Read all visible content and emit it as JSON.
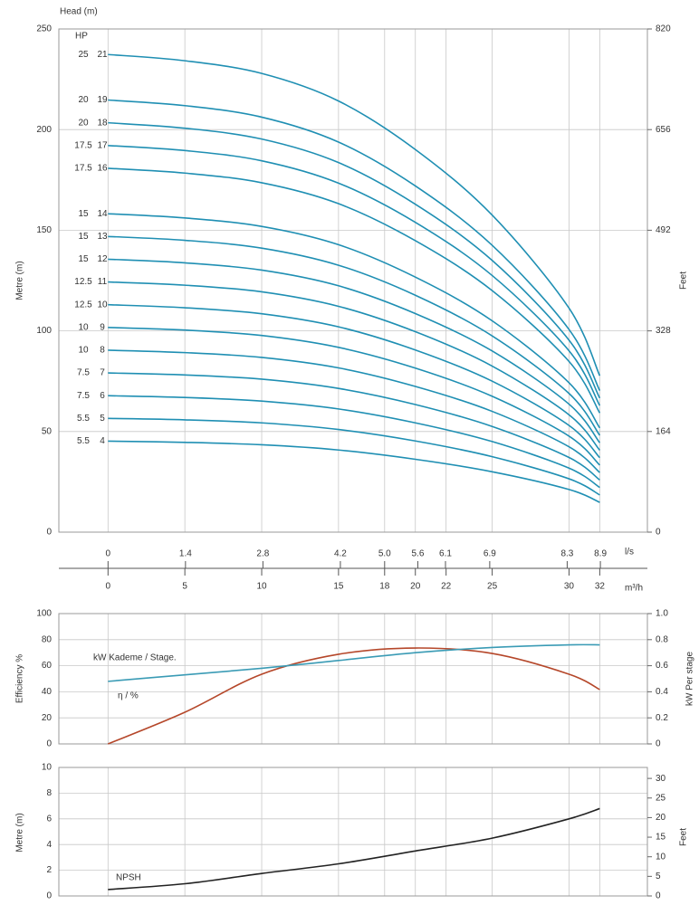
{
  "chart_data": [
    {
      "type": "line",
      "title": "Head (m)",
      "hp_label": "HP",
      "ylabel": "Metre (m)",
      "y2label": "Feet",
      "xlabel": "m³/h",
      "x2label": "l/s",
      "x": [
        0,
        5,
        10,
        15,
        20,
        25,
        30,
        32
      ],
      "xlim": [
        -3.2,
        35.1
      ],
      "xticks": [
        0,
        5,
        10,
        15,
        18,
        20,
        22,
        25,
        30,
        32
      ],
      "x2lim": [
        -0.889,
        9.75
      ],
      "x2ticks": [
        0,
        1.4,
        2.8,
        4.2,
        {
          "value": 5,
          "label": "5.0"
        },
        5.6,
        6.1,
        6.9,
        8.3,
        8.9
      ],
      "ylim": [
        0,
        250
      ],
      "yticks": [
        0,
        50,
        100,
        150,
        200,
        250
      ],
      "y2lim": [
        0,
        820
      ],
      "y2ticks": [
        0,
        164,
        328,
        492,
        656,
        820
      ],
      "grid": true,
      "color": "#1f8fb3",
      "series": [
        {
          "name": "21",
          "hp": 25,
          "values": [
            237.3,
            234.2,
            227.9,
            214.2,
            190.1,
            157.5,
            111.3,
            77.7
          ]
        },
        {
          "name": "19",
          "hp": 20,
          "values": [
            214.7,
            211.9,
            206.2,
            193.8,
            172.0,
            142.5,
            100.7,
            70.3
          ]
        },
        {
          "name": "18",
          "hp": 20,
          "values": [
            203.4,
            200.7,
            195.3,
            183.6,
            162.9,
            135,
            95.4,
            66.6
          ]
        },
        {
          "name": "17",
          "hp": 17.5,
          "values": [
            192.1,
            189.6,
            184.5,
            173.4,
            153.9,
            127.5,
            90.1,
            62.9
          ]
        },
        {
          "name": "16",
          "hp": 17.5,
          "values": [
            180.8,
            178.4,
            173.6,
            163.2,
            144.8,
            120,
            84.8,
            59.2
          ]
        },
        {
          "name": "14",
          "hp": 15,
          "values": [
            158.2,
            156.1,
            151.9,
            142.8,
            126.7,
            105,
            74.2,
            51.8
          ]
        },
        {
          "name": "13",
          "hp": 15,
          "values": [
            146.9,
            145,
            141.1,
            132.6,
            117.7,
            97.5,
            68.9,
            48.1
          ]
        },
        {
          "name": "12",
          "hp": 15,
          "values": [
            135.6,
            133.8,
            130.2,
            122.4,
            108.6,
            90,
            63.6,
            44.4
          ]
        },
        {
          "name": "11",
          "hp": 12.5,
          "values": [
            124.3,
            122.7,
            119.4,
            112.2,
            99.6,
            82.5,
            58.3,
            40.7
          ]
        },
        {
          "name": "10",
          "hp": 12.5,
          "values": [
            113,
            111.5,
            108.5,
            102,
            90.5,
            75,
            53,
            37
          ]
        },
        {
          "name": "9",
          "hp": 10,
          "values": [
            101.7,
            100.4,
            97.7,
            91.8,
            81.5,
            67.5,
            47.7,
            33.3
          ]
        },
        {
          "name": "8",
          "hp": 10,
          "values": [
            90.4,
            89.2,
            86.8,
            81.6,
            72.4,
            60,
            42.4,
            29.6
          ]
        },
        {
          "name": "7",
          "hp": 7.5,
          "values": [
            79.1,
            78.1,
            76,
            71.4,
            63.4,
            52.5,
            37.1,
            25.9
          ]
        },
        {
          "name": "6",
          "hp": 7.5,
          "values": [
            67.8,
            66.9,
            65.1,
            61.2,
            54.3,
            45,
            31.8,
            22.2
          ]
        },
        {
          "name": "5",
          "hp": 5.5,
          "values": [
            56.5,
            55.8,
            54.3,
            51,
            45.3,
            37.5,
            26.5,
            18.5
          ]
        },
        {
          "name": "4",
          "hp": 5.5,
          "values": [
            45.2,
            44.6,
            43.4,
            40.8,
            36.2,
            30,
            21.2,
            14.8
          ]
        }
      ]
    },
    {
      "type": "line",
      "ylabel": "Efficiency %",
      "y2label": "kW Per stage",
      "x": [
        0,
        5,
        10,
        15,
        20,
        25,
        30,
        32
      ],
      "xlim": [
        -3.2,
        35.1
      ],
      "ylim": [
        0,
        100
      ],
      "yticks": [
        0,
        20,
        40,
        60,
        80,
        100
      ],
      "y2lim": [
        0,
        1
      ],
      "y2ticks": [
        0,
        0.2,
        0.4,
        0.6,
        0.8,
        {
          "value": 1,
          "label": "1.0"
        }
      ],
      "grid": true,
      "series": [
        {
          "name": "η / %",
          "color": "#b5472a",
          "values": [
            0,
            24.3,
            53.5,
            68.8,
            73.6,
            69.4,
            53.5,
            41.7
          ]
        },
        {
          "name": "kW Kademe / Stage.",
          "color": "#3a9bb5",
          "axis": "y2",
          "values": [
            0.48,
            0.53,
            0.58,
            0.64,
            0.7,
            0.74,
            0.76,
            0.76
          ]
        }
      ]
    },
    {
      "type": "line",
      "ylabel": "Metre (m)",
      "y2label": "Feet",
      "x": [
        0,
        5,
        10,
        15,
        20,
        25,
        30,
        32
      ],
      "xlim": [
        -3.2,
        35.1
      ],
      "ylim": [
        0,
        10
      ],
      "yticks": [
        0,
        2,
        4,
        6,
        8,
        10
      ],
      "y2lim": [
        0,
        32.8
      ],
      "y2ticks": [
        0,
        5,
        10,
        15,
        20,
        25,
        30
      ],
      "grid": true,
      "series": [
        {
          "name": "NPSH",
          "color": "#222222",
          "values": [
            0.5,
            0.95,
            1.75,
            2.5,
            3.5,
            4.5,
            6.0,
            6.8
          ]
        }
      ]
    }
  ]
}
